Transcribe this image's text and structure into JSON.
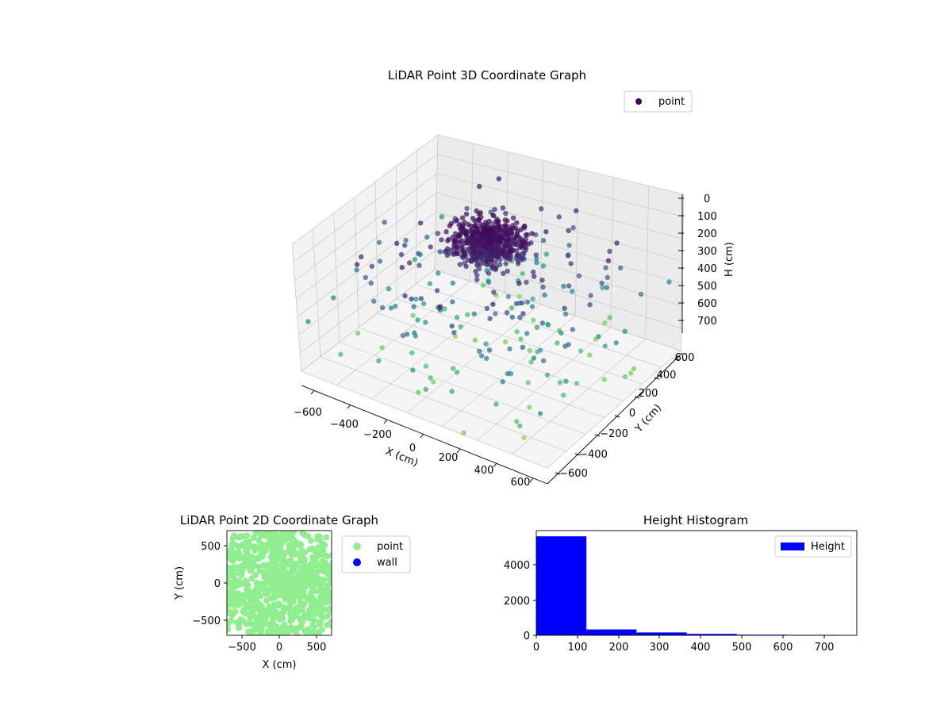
{
  "chart_data": [
    {
      "type": "scatter3d",
      "title": "LiDAR Point 3D Coordinate Graph",
      "xlabel": "X (cm)",
      "ylabel": "Y (cm)",
      "zlabel": "H (cm)",
      "xticks": [
        "−600",
        "−400",
        "−200",
        "0",
        "200",
        "400",
        "600"
      ],
      "yticks": [
        "−600",
        "−400",
        "−200",
        "0",
        "200",
        "400",
        "600"
      ],
      "zticks": [
        "0",
        "100",
        "200",
        "300",
        "400",
        "500",
        "600",
        "700"
      ],
      "xlim": [
        -700,
        700
      ],
      "ylim": [
        -700,
        700
      ],
      "zlim": [
        0,
        780
      ],
      "zaxis_inverted": true,
      "colormap": "viridis",
      "grid": true,
      "legend": {
        "placement": "upper-right",
        "entries": [
          {
            "label": "point",
            "color": "#440154"
          }
        ]
      },
      "points": [
        [
          0,
          0,
          40
        ],
        [
          40,
          -20,
          50
        ],
        [
          -30,
          30,
          60
        ],
        [
          60,
          40,
          30
        ],
        [
          -60,
          -40,
          70
        ],
        [
          20,
          80,
          45
        ],
        [
          -80,
          10,
          55
        ],
        [
          100,
          -60,
          80
        ],
        [
          -120,
          60,
          90
        ],
        [
          70,
          110,
          65
        ],
        [
          150,
          20,
          120
        ],
        [
          -160,
          -90,
          130
        ],
        [
          120,
          -160,
          100
        ],
        [
          -40,
          170,
          110
        ],
        [
          200,
          120,
          150
        ],
        [
          -210,
          140,
          160
        ],
        [
          260,
          -80,
          180
        ],
        [
          -280,
          -200,
          200
        ],
        [
          180,
          -260,
          170
        ],
        [
          300,
          260,
          190
        ],
        [
          -320,
          280,
          210
        ],
        [
          350,
          -300,
          230
        ],
        [
          -380,
          -40,
          240
        ],
        [
          420,
          60,
          220
        ],
        [
          -40,
          -420,
          250
        ],
        [
          60,
          430,
          260
        ],
        [
          450,
          -450,
          280
        ],
        [
          -460,
          460,
          300
        ],
        [
          500,
          300,
          270
        ],
        [
          -520,
          -320,
          290
        ],
        [
          300,
          -520,
          310
        ],
        [
          -300,
          540,
          320
        ],
        [
          560,
          -150,
          300
        ],
        [
          -580,
          180,
          330
        ],
        [
          120,
          580,
          340
        ],
        [
          -150,
          -600,
          350
        ],
        [
          620,
          420,
          380
        ],
        [
          -640,
          -440,
          390
        ],
        [
          440,
          -640,
          370
        ],
        [
          -460,
          650,
          400
        ],
        [
          650,
          650,
          420
        ],
        [
          -660,
          -660,
          430
        ],
        [
          660,
          -660,
          450
        ],
        [
          -650,
          660,
          440
        ],
        [
          250,
          350,
          120
        ],
        [
          -350,
          -250,
          140
        ],
        [
          380,
          150,
          160
        ],
        [
          -200,
          400,
          150
        ],
        [
          400,
          -350,
          170
        ],
        [
          -420,
          -100,
          180
        ],
        [
          80,
          -250,
          140
        ],
        [
          -260,
          -120,
          130
        ],
        [
          520,
          100,
          260
        ],
        [
          -100,
          520,
          280
        ],
        [
          330,
          -120,
          110
        ],
        [
          -500,
          250,
          320
        ],
        [
          250,
          -420,
          210
        ],
        [
          -150,
          300,
          120
        ],
        [
          420,
          420,
          300
        ],
        [
          -400,
          -450,
          320
        ],
        [
          600,
          -300,
          480
        ],
        [
          -600,
          300,
          500
        ],
        [
          300,
          600,
          520
        ],
        [
          -300,
          -600,
          540
        ],
        [
          500,
          -600,
          600
        ],
        [
          -550,
          -550,
          620
        ],
        [
          650,
          200,
          680
        ],
        [
          -650,
          -200,
          700
        ],
        [
          200,
          -650,
          720
        ],
        [
          -200,
          650,
          740
        ]
      ]
    },
    {
      "type": "scatter",
      "title": "LiDAR Point 2D Coordinate Graph",
      "xlabel": "X (cm)",
      "ylabel": "Y (cm)",
      "xticks": [
        "−500",
        "0",
        "500"
      ],
      "yticks": [
        "500",
        "0",
        "−500"
      ],
      "xlim": [
        -700,
        700
      ],
      "ylim": [
        -700,
        700
      ],
      "legend": {
        "placement": "outside-right",
        "entries": [
          {
            "label": "point",
            "color": "#90ee90"
          },
          {
            "label": "wall",
            "color": "#0000ff"
          }
        ]
      },
      "series": [
        {
          "name": "point",
          "color": "#90ee90"
        },
        {
          "name": "wall",
          "color": "#0000ff"
        }
      ]
    },
    {
      "type": "bar",
      "title": "Height Histogram",
      "xticks": [
        "0",
        "100",
        "200",
        "300",
        "400",
        "500",
        "600",
        "700"
      ],
      "yticks": [
        "0",
        "2000",
        "4000"
      ],
      "xlim": [
        0,
        780
      ],
      "ylim": [
        0,
        5900
      ],
      "bin_edges": [
        0,
        122,
        244,
        366,
        488,
        610,
        732,
        780
      ],
      "counts": [
        5580,
        330,
        160,
        80,
        35,
        25,
        20
      ],
      "color": "#0000ff",
      "legend": {
        "placement": "upper-right",
        "entries": [
          {
            "label": "Height",
            "color": "#0000ff"
          }
        ]
      }
    }
  ]
}
